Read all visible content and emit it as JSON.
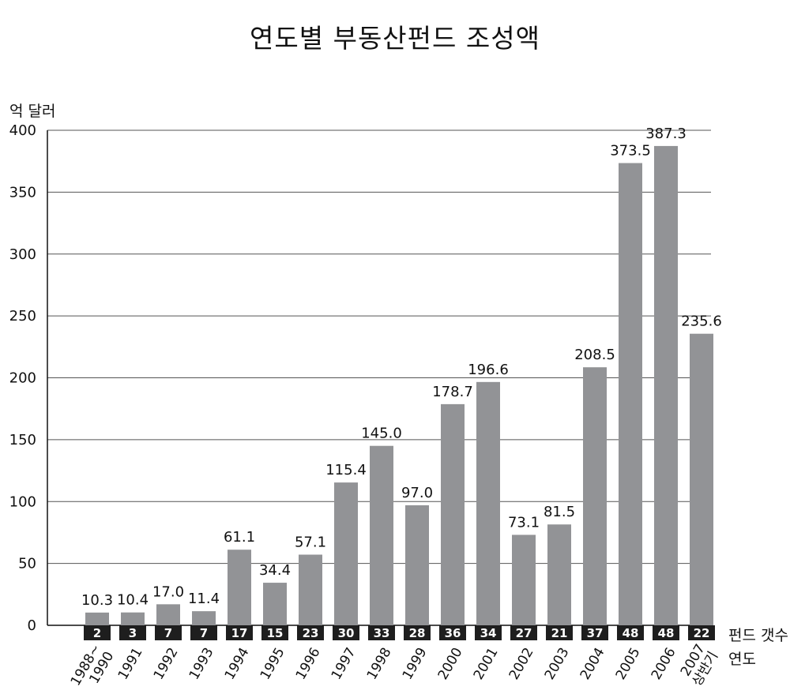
{
  "chart_data": {
    "type": "bar",
    "title": "연도별 부동산펀드 조성액",
    "ylabel": "억 달러",
    "ylim": [
      0,
      400
    ],
    "yticks": [
      0,
      50,
      100,
      150,
      200,
      250,
      300,
      350,
      400
    ],
    "grid": true,
    "categories": [
      "1988~1990",
      "1991",
      "1992",
      "1993",
      "1994",
      "1995",
      "1996",
      "1997",
      "1998",
      "1999",
      "2000",
      "2001",
      "2002",
      "2003",
      "2004",
      "2005",
      "2006",
      "2007 상반기"
    ],
    "category_lines": [
      [
        "1988~",
        "1990"
      ],
      [
        "1991"
      ],
      [
        "1992"
      ],
      [
        "1993"
      ],
      [
        "1994"
      ],
      [
        "1995"
      ],
      [
        "1996"
      ],
      [
        "1997"
      ],
      [
        "1998"
      ],
      [
        "1999"
      ],
      [
        "2000"
      ],
      [
        "2001"
      ],
      [
        "2002"
      ],
      [
        "2003"
      ],
      [
        "2004"
      ],
      [
        "2005"
      ],
      [
        "2006"
      ],
      [
        "2007",
        "상반기"
      ]
    ],
    "values": [
      10.3,
      10.4,
      17.0,
      11.4,
      61.1,
      34.4,
      57.1,
      115.4,
      145.0,
      97.0,
      178.7,
      196.6,
      73.1,
      81.5,
      208.5,
      373.5,
      387.3,
      235.6
    ],
    "value_labels": [
      "10.3",
      "10.4",
      "17.0",
      "11.4",
      "61.1",
      "34.4",
      "57.1",
      "115.4",
      "145.0",
      "97.0",
      "178.7",
      "196.6",
      "73.1",
      "81.5",
      "208.5",
      "373.5",
      "387.3",
      "235.6"
    ],
    "fund_counts": [
      "2",
      "3",
      "7",
      "7",
      "17",
      "15",
      "23",
      "30",
      "33",
      "28",
      "36",
      "34",
      "27",
      "21",
      "37",
      "48",
      "48",
      "22"
    ],
    "fund_count_label": "펀드 갯수",
    "xlabel": "연도",
    "colors": {
      "bar": "#929396",
      "count_box": "#1e1e1e",
      "grid": "#555555",
      "axis": "#111111"
    }
  }
}
